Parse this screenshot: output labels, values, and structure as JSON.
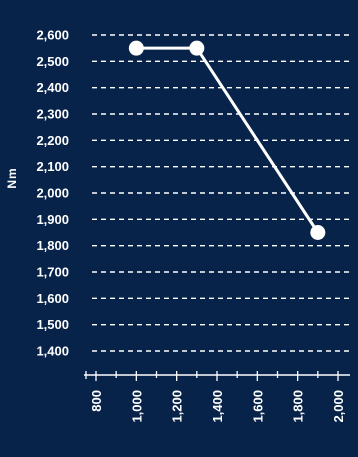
{
  "chart_data": {
    "type": "line",
    "title": "",
    "xlabel": "",
    "ylabel": "Nm",
    "x_ticks": [
      800,
      1000,
      1200,
      1400,
      1600,
      1800,
      2000
    ],
    "x_tick_labels": [
      "800",
      "1,000",
      "1,200",
      "1,400",
      "1,600",
      "1,800",
      "2,000"
    ],
    "y_ticks": [
      1400,
      1500,
      1600,
      1700,
      1800,
      1900,
      2000,
      2100,
      2200,
      2300,
      2400,
      2500,
      2600
    ],
    "y_tick_labels": [
      "1,400",
      "1,500",
      "1,600",
      "1,700",
      "1,800",
      "1,900",
      "2,000",
      "2,100",
      "2,200",
      "2,300",
      "2,400",
      "2,500",
      "2,600"
    ],
    "xlim": [
      750,
      2050
    ],
    "ylim": [
      1400,
      2600
    ],
    "grid": true,
    "legend": "none",
    "series": [
      {
        "x": [
          1000,
          1300,
          1900
        ],
        "y": [
          2550,
          2550,
          1850
        ]
      }
    ],
    "colors": {
      "background": "#07234a",
      "line": "#ffffff",
      "grid": "#ffffff",
      "text": "#ffffff"
    }
  }
}
